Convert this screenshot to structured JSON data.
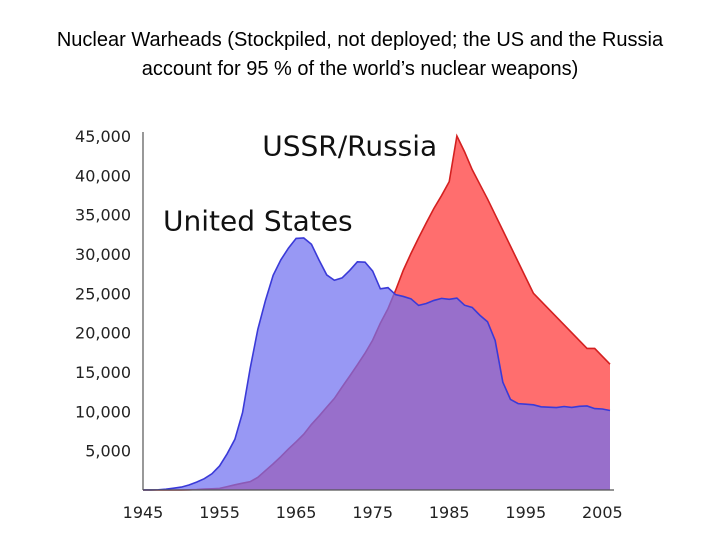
{
  "title": "Nuclear Warheads (Stockpiled, not deployed; the US and the Russia account for 95 % of the world’s nuclear weapons)",
  "chart_data": {
    "type": "area",
    "title": "Nuclear Warheads (Stockpiled, not deployed; the US and the Russia account for 95 % of the world’s nuclear weapons)",
    "xlabel": "",
    "ylabel": "",
    "xlim": [
      1945,
      2006
    ],
    "ylim": [
      0,
      45000
    ],
    "x_ticks": [
      "1945",
      "1955",
      "1965",
      "1975",
      "1985",
      "1995",
      "2005"
    ],
    "y_ticks": [
      "45,000",
      "40,000",
      "35,000",
      "30,000",
      "25,000",
      "20,000",
      "15,000",
      "10,000",
      "5,000"
    ],
    "grid": false,
    "legend": "none",
    "series_labels": [
      {
        "text": "USSR/Russia",
        "anchor_x": 1972,
        "anchor_y": 42500
      },
      {
        "text": "United States",
        "anchor_x": 1960,
        "anchor_y": 33000
      }
    ],
    "series": [
      {
        "name": "United States",
        "fill": "#7070f0",
        "stroke": "#3a3ad8",
        "x": [
          1945,
          1946,
          1947,
          1948,
          1949,
          1950,
          1951,
          1952,
          1953,
          1954,
          1955,
          1956,
          1957,
          1958,
          1959,
          1960,
          1961,
          1962,
          1963,
          1964,
          1965,
          1966,
          1967,
          1968,
          1969,
          1970,
          1971,
          1972,
          1973,
          1974,
          1975,
          1976,
          1977,
          1978,
          1979,
          1980,
          1981,
          1982,
          1983,
          1984,
          1985,
          1986,
          1987,
          1988,
          1989,
          1990,
          1991,
          1992,
          1993,
          1994,
          1995,
          1996,
          1997,
          1998,
          1999,
          2000,
          2001,
          2002,
          2003,
          2004,
          2005,
          2006
        ],
        "values": [
          6,
          11,
          32,
          110,
          235,
          369,
          640,
          1005,
          1436,
          2063,
          3057,
          4618,
          6444,
          9822,
          15468,
          20434,
          24111,
          27297,
          29249,
          30751,
          31982,
          32040,
          31233,
          29224,
          27342,
          26662,
          26956,
          27912,
          28999,
          28965,
          27826,
          25579,
          25722,
          24826,
          24605,
          24304,
          23464,
          23708,
          24099,
          24357,
          24237,
          24401,
          23490,
          23205,
          22217,
          21392,
          19008,
          13708,
          11511,
          10979,
          10904,
          10829,
          10577,
          10527,
          10475,
          10615,
          10491,
          10640,
          10685,
          10350,
          10295,
          10104
        ]
      },
      {
        "name": "USSR/Russia",
        "fill": "#ff6e6e",
        "stroke": "#d42020",
        "x": [
          1945,
          1946,
          1947,
          1948,
          1949,
          1950,
          1951,
          1952,
          1953,
          1954,
          1955,
          1956,
          1957,
          1958,
          1959,
          1960,
          1961,
          1962,
          1963,
          1964,
          1965,
          1966,
          1967,
          1968,
          1969,
          1970,
          1971,
          1972,
          1973,
          1974,
          1975,
          1976,
          1977,
          1978,
          1979,
          1980,
          1981,
          1982,
          1983,
          1984,
          1985,
          1986,
          1987,
          1988,
          1989,
          1990,
          1991,
          1992,
          1993,
          1994,
          1995,
          1996,
          1997,
          1998,
          1999,
          2000,
          2001,
          2002,
          2003,
          2004,
          2005,
          2006
        ],
        "values": [
          0,
          0,
          0,
          0,
          1,
          5,
          25,
          50,
          120,
          150,
          200,
          426,
          660,
          869,
          1060,
          1605,
          2471,
          3322,
          4238,
          5221,
          6129,
          7089,
          8339,
          9399,
          10538,
          11643,
          13092,
          14478,
          15915,
          17385,
          19055,
          21205,
          23044,
          25393,
          27935,
          30062,
          32049,
          33952,
          35804,
          37431,
          39197,
          45000,
          43000,
          40723,
          38859,
          37000,
          35000,
          33000,
          31000,
          29000,
          27000,
          25000,
          24000,
          23000,
          22000,
          21000,
          20000,
          19000,
          18000,
          18000,
          17000,
          16000
        ]
      }
    ]
  }
}
